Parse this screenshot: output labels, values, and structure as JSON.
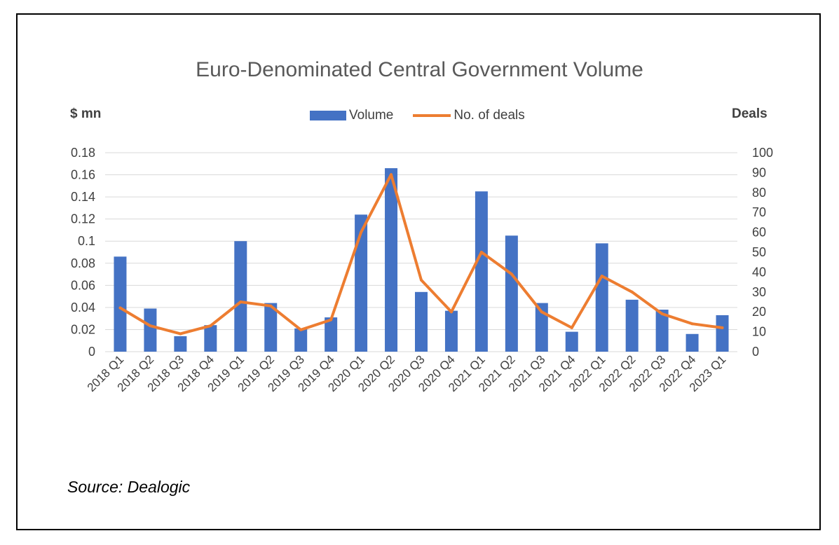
{
  "chart_data": {
    "type": "bar",
    "title": "Euro-Denominated Central Government Volume",
    "ylabel_left": "$ mn",
    "ylabel_right": "Deals",
    "legend_placement": "top-center",
    "grid": true,
    "ylim": [
      0,
      0.18
    ],
    "ylim_right": [
      0,
      100
    ],
    "yticks": [
      "0",
      "0.02",
      "0.04",
      "0.06",
      "0.08",
      "0.1",
      "0.12",
      "0.14",
      "0.16",
      "0.18"
    ],
    "yticks_right": [
      "0",
      "10",
      "20",
      "30",
      "40",
      "50",
      "60",
      "70",
      "80",
      "90",
      "100"
    ],
    "categories": [
      "2018 Q1",
      "2018 Q2",
      "2018 Q3",
      "2018 Q4",
      "2019 Q1",
      "2019 Q2",
      "2019 Q3",
      "2019 Q4",
      "2020 Q1",
      "2020 Q2",
      "2020 Q3",
      "2020 Q4",
      "2021 Q1",
      "2021 Q2",
      "2021 Q3",
      "2021 Q4",
      "2022 Q1",
      "2022 Q2",
      "2022 Q3",
      "2022 Q4",
      "2023 Q1"
    ],
    "series": [
      {
        "name": "Volume",
        "type": "bar",
        "axis": "left",
        "color": "#4472C4",
        "values": [
          0.086,
          0.039,
          0.014,
          0.024,
          0.1,
          0.044,
          0.021,
          0.031,
          0.124,
          0.166,
          0.054,
          0.037,
          0.145,
          0.105,
          0.044,
          0.018,
          0.098,
          0.047,
          0.038,
          0.016,
          0.033
        ]
      },
      {
        "name": "No. of deals",
        "type": "line",
        "axis": "right",
        "color": "#ED7D31",
        "values": [
          22,
          13,
          9,
          13,
          25,
          23,
          11,
          16,
          60,
          89,
          36,
          20,
          50,
          39,
          20,
          12,
          38,
          30,
          19,
          14,
          12
        ]
      }
    ]
  },
  "source": "Source: Dealogic"
}
